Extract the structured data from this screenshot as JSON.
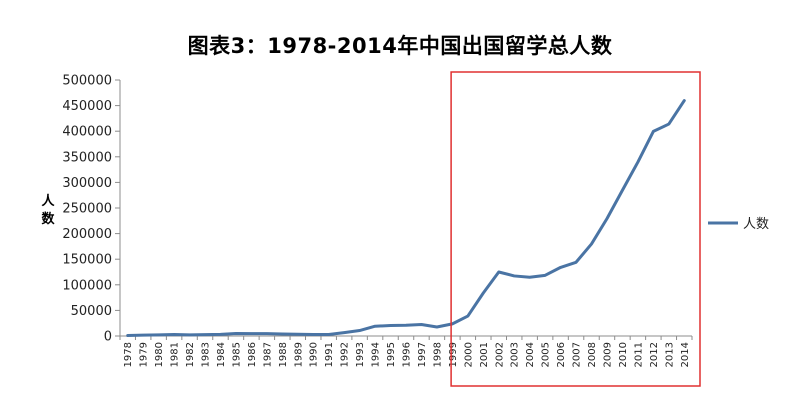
{
  "chart_data": {
    "type": "line",
    "title": "图表3：1978-2014年中国出国留学总人数",
    "ylabel": "人数",
    "xlabel": "",
    "ylim": [
      0,
      500000
    ],
    "yticks": [
      0,
      50000,
      100000,
      150000,
      200000,
      250000,
      300000,
      350000,
      400000,
      450000,
      500000
    ],
    "legend_position": "right",
    "grid": false,
    "categories": [
      "1978",
      "1979",
      "1980",
      "1981",
      "1982",
      "1983",
      "1984",
      "1985",
      "1986",
      "1987",
      "1988",
      "1989",
      "1990",
      "1991",
      "1992",
      "1993",
      "1994",
      "1995",
      "1996",
      "1997",
      "1998",
      "1999",
      "2000",
      "2001",
      "2002",
      "2003",
      "2004",
      "2005",
      "2006",
      "2007",
      "2008",
      "2009",
      "2010",
      "2011",
      "2012",
      "2013",
      "2014"
    ],
    "series": [
      {
        "name": "人数",
        "color": "#4a74a4",
        "values": [
          860,
          1800,
          2100,
          2900,
          2300,
          2600,
          3100,
          4900,
          4700,
          4700,
          3800,
          3300,
          2900,
          2900,
          6500,
          10700,
          19100,
          20400,
          20900,
          22400,
          17600,
          23700,
          39000,
          84000,
          125000,
          117300,
          114700,
          118500,
          134000,
          144000,
          179800,
          229300,
          284700,
          339700,
          399600,
          413900,
          459800
        ]
      }
    ],
    "highlight_box": {
      "from": "2000",
      "to": "2014",
      "color": "#e03030"
    }
  }
}
